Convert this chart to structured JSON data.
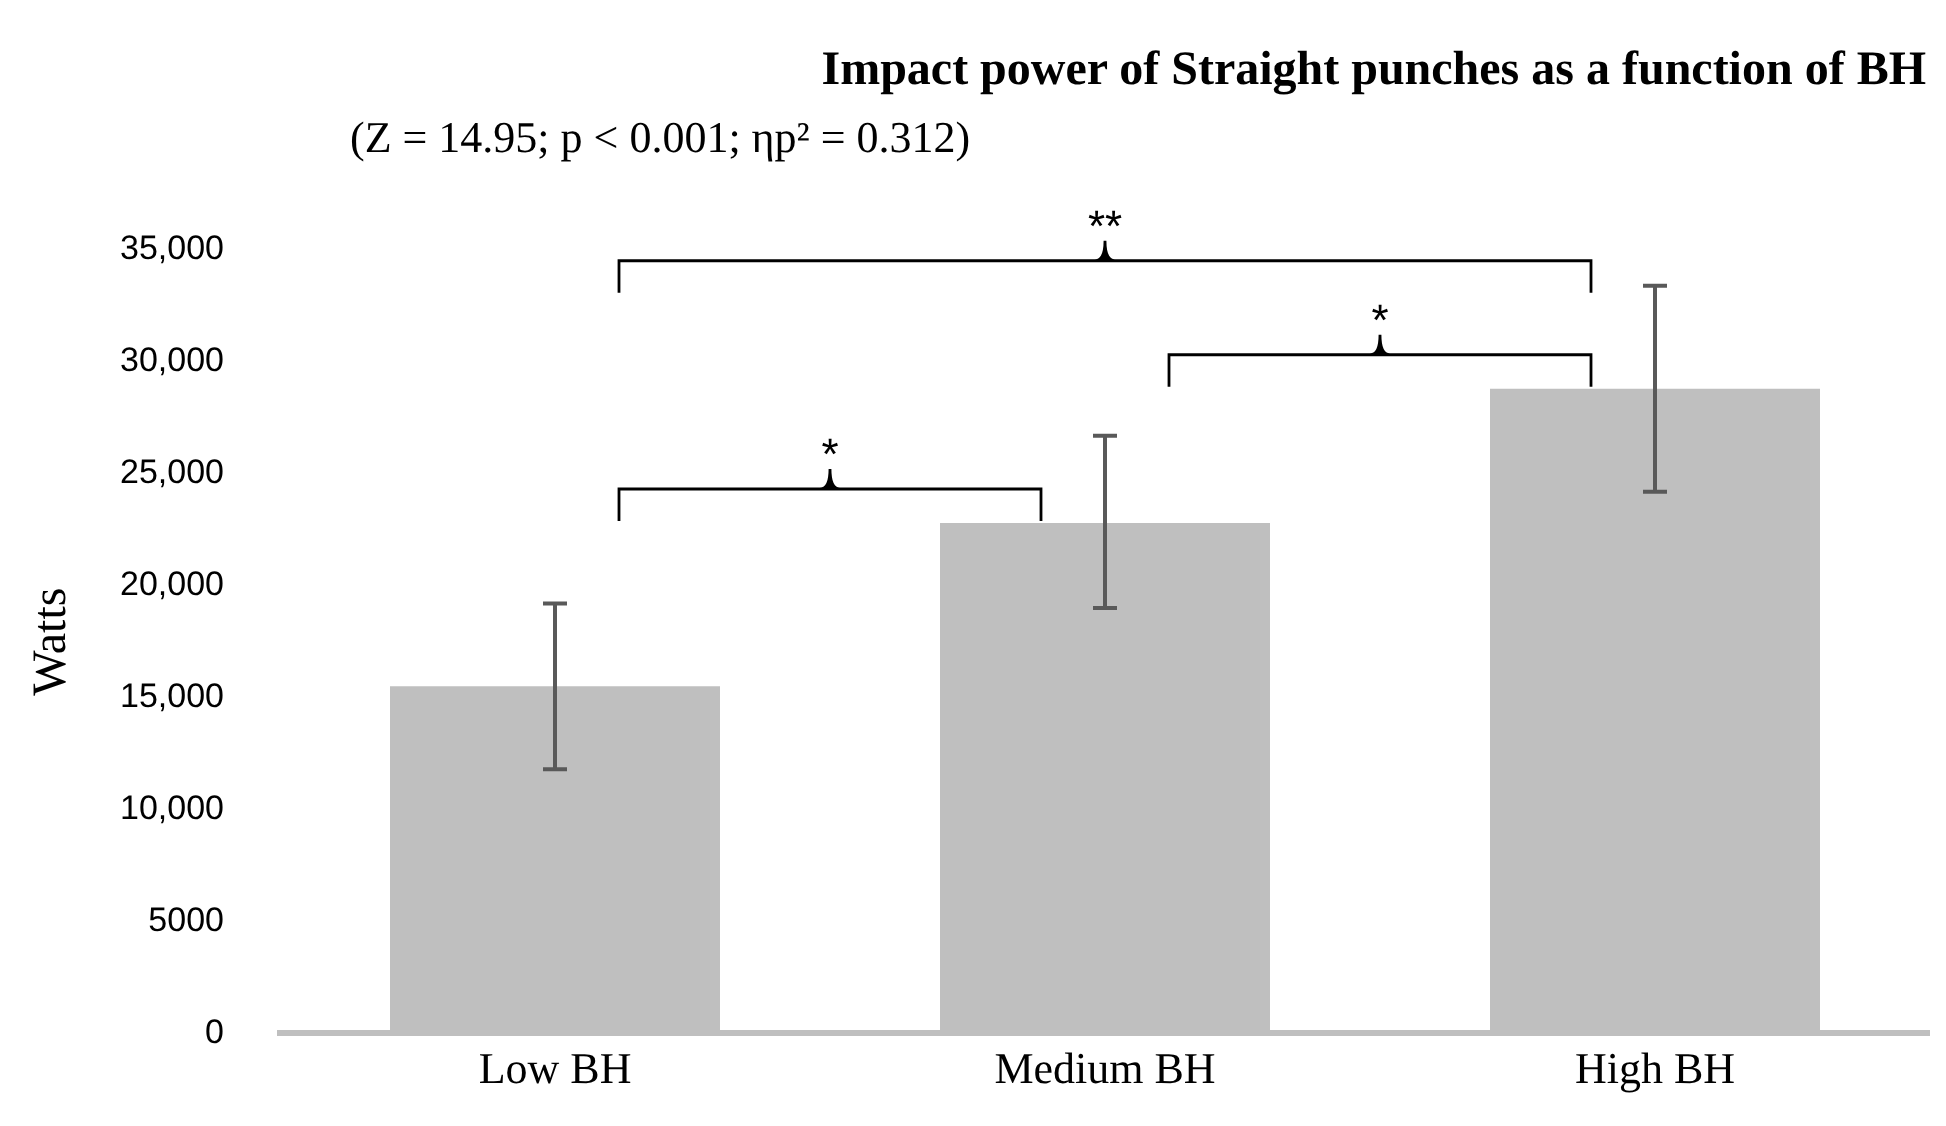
{
  "chart_data": {
    "type": "bar",
    "title": "Impact power of Straight punches as a function of BH",
    "subtitle": "(Z = 14.95; p < 0.001; ηp² = 0.312)",
    "ylabel": "Watts",
    "categories": [
      "Low BH",
      "Medium BH",
      "High BH"
    ],
    "values": [
      15500,
      22800,
      28800
    ],
    "color": "#bfbfbf",
    "errors": [
      [
        11800,
        19200
      ],
      [
        19000,
        26700
      ],
      [
        24200,
        33400
      ]
    ],
    "ylim": [
      0,
      35000
    ],
    "yticks": [
      0,
      {
        "value": 5000,
        "label": "5000"
      },
      {
        "value": 10000,
        "label": "10,000"
      },
      {
        "value": 15000,
        "label": "15,000"
      },
      {
        "value": 20000,
        "label": "20,000"
      },
      {
        "value": 25000,
        "label": "25,000"
      },
      {
        "value": 30000,
        "label": "30,000"
      },
      {
        "value": 35000,
        "label": "35,000"
      }
    ],
    "annotations": [
      "*",
      "*",
      "**"
    ],
    "grid": false,
    "legend": false
  }
}
